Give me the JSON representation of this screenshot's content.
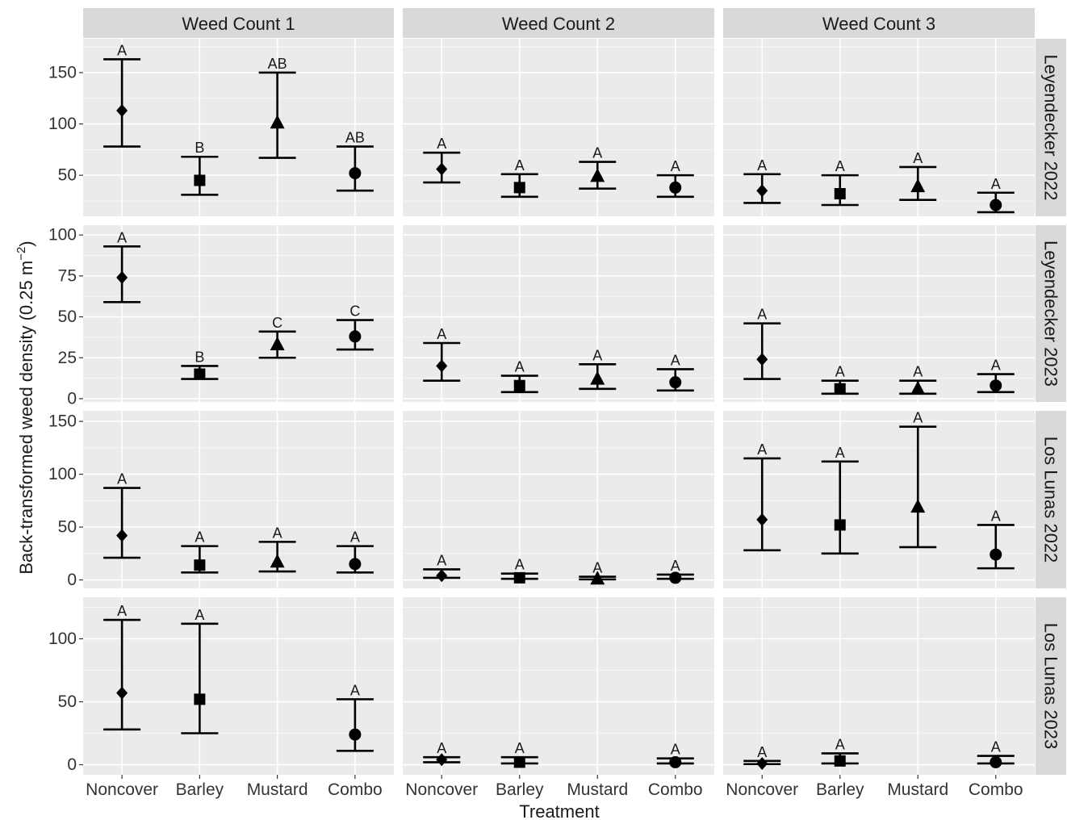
{
  "chart_data": {
    "type": "scatter",
    "title": "",
    "xlabel": "Treatment",
    "ylabel": "Back-transformed weed density (0.25 m",
    "ylabel_superscript": "−2",
    "ylabel_suffix": ")",
    "categories": [
      "Noncover",
      "Barley",
      "Mustard",
      "Combo"
    ],
    "columns": [
      "Weed Count 1",
      "Weed Count 2",
      "Weed Count 3"
    ],
    "rows": [
      {
        "label": "Leyendecker 2022",
        "ylim": [
          10,
          183
        ],
        "yticks": [
          50,
          100,
          150
        ],
        "tick_labels": [
          "50",
          "100",
          "150"
        ],
        "panels": [
          {
            "points": [
              {
                "category": "Noncover",
                "mean": 113,
                "low": 78,
                "high": 163,
                "letter": "A"
              },
              {
                "category": "Barley",
                "mean": 45,
                "low": 31,
                "high": 68,
                "letter": "B"
              },
              {
                "category": "Mustard",
                "mean": 101,
                "low": 67,
                "high": 150,
                "letter": "AB"
              },
              {
                "category": "Combo",
                "mean": 52,
                "low": 35,
                "high": 78,
                "letter": "AB"
              }
            ]
          },
          {
            "points": [
              {
                "category": "Noncover",
                "mean": 56,
                "low": 43,
                "high": 72,
                "letter": "A"
              },
              {
                "category": "Barley",
                "mean": 38,
                "low": 29,
                "high": 51,
                "letter": "A"
              },
              {
                "category": "Mustard",
                "mean": 49,
                "low": 37,
                "high": 63,
                "letter": "A"
              },
              {
                "category": "Combo",
                "mean": 38,
                "low": 29,
                "high": 50,
                "letter": "A"
              }
            ]
          },
          {
            "points": [
              {
                "category": "Noncover",
                "mean": 35,
                "low": 23,
                "high": 51,
                "letter": "A"
              },
              {
                "category": "Barley",
                "mean": 32,
                "low": 21,
                "high": 50,
                "letter": "A"
              },
              {
                "category": "Mustard",
                "mean": 39,
                "low": 26,
                "high": 58,
                "letter": "A"
              },
              {
                "category": "Combo",
                "mean": 21,
                "low": 14,
                "high": 33,
                "letter": "A"
              }
            ]
          }
        ]
      },
      {
        "label": "Leyendecker 2023",
        "ylim": [
          -2,
          106
        ],
        "yticks": [
          0,
          25,
          50,
          75,
          100
        ],
        "tick_labels": [
          "0",
          "25",
          "50",
          "75",
          "100"
        ],
        "panels": [
          {
            "points": [
              {
                "category": "Noncover",
                "mean": 74,
                "low": 59,
                "high": 93,
                "letter": "A"
              },
              {
                "category": "Barley",
                "mean": 15,
                "low": 12,
                "high": 20,
                "letter": "B"
              },
              {
                "category": "Mustard",
                "mean": 33,
                "low": 25,
                "high": 41,
                "letter": "C"
              },
              {
                "category": "Combo",
                "mean": 38,
                "low": 30,
                "high": 48,
                "letter": "C"
              }
            ]
          },
          {
            "points": [
              {
                "category": "Noncover",
                "mean": 20,
                "low": 11,
                "high": 34,
                "letter": "A"
              },
              {
                "category": "Barley",
                "mean": 8,
                "low": 4,
                "high": 14,
                "letter": "A"
              },
              {
                "category": "Mustard",
                "mean": 12,
                "low": 6,
                "high": 21,
                "letter": "A"
              },
              {
                "category": "Combo",
                "mean": 10,
                "low": 5,
                "high": 18,
                "letter": "A"
              }
            ]
          },
          {
            "points": [
              {
                "category": "Noncover",
                "mean": 24,
                "low": 12,
                "high": 46,
                "letter": "A"
              },
              {
                "category": "Barley",
                "mean": 6,
                "low": 3,
                "high": 11,
                "letter": "A"
              },
              {
                "category": "Mustard",
                "mean": 6,
                "low": 3,
                "high": 11,
                "letter": "A"
              },
              {
                "category": "Combo",
                "mean": 8,
                "low": 4,
                "high": 15,
                "letter": "A"
              }
            ]
          }
        ]
      },
      {
        "label": "Los Lunas 2022",
        "ylim": [
          -8,
          160
        ],
        "yticks": [
          0,
          50,
          100,
          150
        ],
        "tick_labels": [
          "0",
          "50",
          "100",
          "150"
        ],
        "panels": [
          {
            "points": [
              {
                "category": "Noncover",
                "mean": 42,
                "low": 21,
                "high": 87,
                "letter": "A"
              },
              {
                "category": "Barley",
                "mean": 14,
                "low": 7,
                "high": 32,
                "letter": "A"
              },
              {
                "category": "Mustard",
                "mean": 17,
                "low": 8,
                "high": 36,
                "letter": "A"
              },
              {
                "category": "Combo",
                "mean": 15,
                "low": 7,
                "high": 32,
                "letter": "A"
              }
            ]
          },
          {
            "points": [
              {
                "category": "Noncover",
                "mean": 4,
                "low": 2,
                "high": 10,
                "letter": "A"
              },
              {
                "category": "Barley",
                "mean": 2,
                "low": 1,
                "high": 6,
                "letter": "A"
              },
              {
                "category": "Mustard",
                "mean": 1,
                "low": 0.5,
                "high": 3,
                "letter": "A"
              },
              {
                "category": "Combo",
                "mean": 2,
                "low": 1,
                "high": 5,
                "letter": "A"
              }
            ]
          },
          {
            "points": [
              {
                "category": "Noncover",
                "mean": 57,
                "low": 28,
                "high": 115,
                "letter": "A"
              },
              {
                "category": "Barley",
                "mean": 52,
                "low": 25,
                "high": 112,
                "letter": "A"
              },
              {
                "category": "Mustard",
                "mean": 69,
                "low": 31,
                "high": 145,
                "letter": "A"
              },
              {
                "category": "Combo",
                "mean": 24,
                "low": 11,
                "high": 52,
                "letter": "A"
              }
            ]
          }
        ]
      },
      {
        "label": "Los Lunas 2023",
        "ylim": [
          -8,
          133
        ],
        "yticks": [
          0,
          50,
          100
        ],
        "tick_labels": [
          "0",
          "50",
          "100"
        ],
        "panels": [
          {
            "points": [
              {
                "category": "Noncover",
                "mean": 57,
                "low": 28,
                "high": 115,
                "letter": "A"
              },
              {
                "category": "Barley",
                "mean": 52,
                "low": 25,
                "high": 112,
                "letter": "A"
              },
              {
                "category": "Combo",
                "mean": 24,
                "low": 11,
                "high": 52,
                "letter": "A"
              }
            ]
          },
          {
            "points": [
              {
                "category": "Noncover",
                "mean": 4,
                "low": 2,
                "high": 6,
                "letter": "A"
              },
              {
                "category": "Barley",
                "mean": 2,
                "low": 1,
                "high": 6,
                "letter": "A"
              },
              {
                "category": "Combo",
                "mean": 2,
                "low": 1,
                "high": 5,
                "letter": "A"
              }
            ]
          },
          {
            "points": [
              {
                "category": "Noncover",
                "mean": 1,
                "low": 0.5,
                "high": 3,
                "letter": "A"
              },
              {
                "category": "Barley",
                "mean": 3,
                "low": 1,
                "high": 9,
                "letter": "A"
              },
              {
                "category": "Combo",
                "mean": 2,
                "low": 1,
                "high": 7,
                "letter": "A"
              }
            ]
          }
        ]
      }
    ],
    "shapes": {
      "Noncover": "diamond",
      "Barley": "square",
      "Mustard": "triangle",
      "Combo": "circle"
    },
    "colors": {
      "panel_background": "#ebebeb",
      "strip_background": "#d9d9d9",
      "grid": "#ffffff",
      "marks": "#000000"
    },
    "grid": true,
    "legend": "none"
  }
}
